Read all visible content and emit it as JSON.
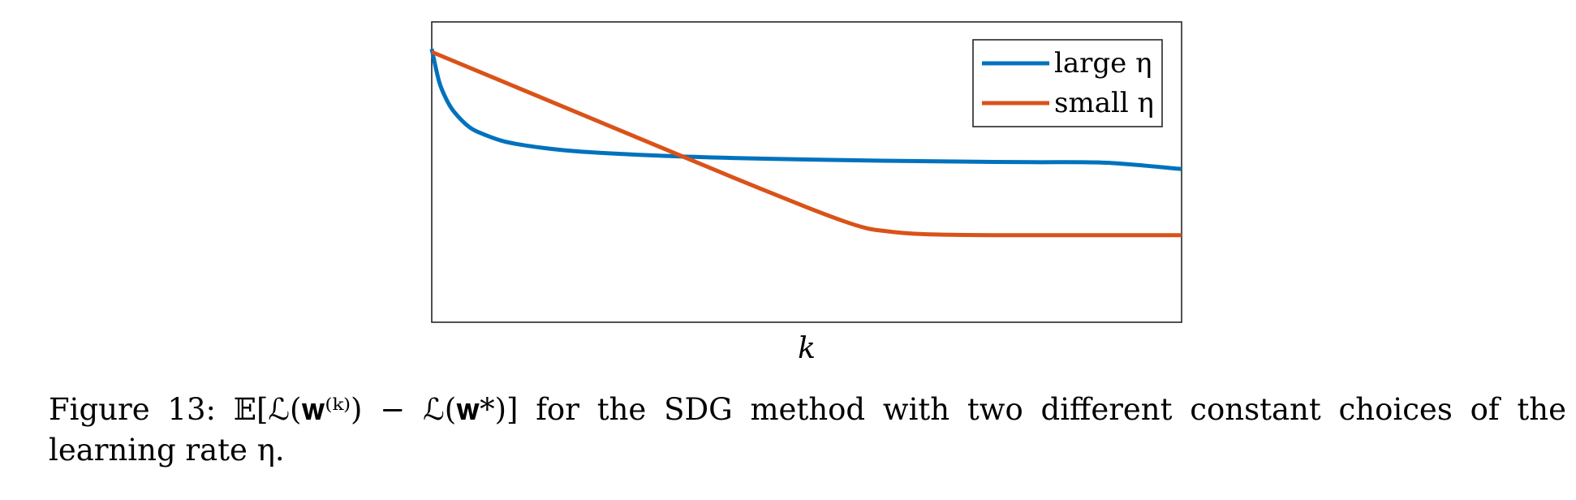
{
  "caption": {
    "label": "Figure 13:",
    "text": "𝔼[ℒ(𝐰⁽ᵏ⁾) − ℒ(𝐰*)] for the SDG method with two different constant choices of the learning rate η."
  },
  "chart_data": {
    "type": "line",
    "title": "",
    "xlabel": "k",
    "ylabel": "",
    "xlim": [
      0,
      100
    ],
    "ylim": [
      0,
      100
    ],
    "grid": false,
    "legend_position": "top-right",
    "series": [
      {
        "name": "large η",
        "color": "#0072BD",
        "x": [
          0,
          1,
          2,
          3,
          5,
          7,
          10,
          15,
          20,
          30,
          40,
          50,
          60,
          70,
          80,
          90,
          100
        ],
        "y": [
          91,
          80,
          74,
          70,
          65,
          62.5,
          60,
          58,
          56.8,
          55.5,
          54.7,
          54.2,
          53.8,
          53.5,
          53.3,
          53.1,
          51
        ]
      },
      {
        "name": "small η",
        "color": "#D95319",
        "x": [
          0,
          10,
          20,
          30,
          40,
          50,
          55,
          58,
          60,
          63,
          66,
          70,
          75,
          80,
          90,
          100
        ],
        "y": [
          90,
          79.6,
          69.2,
          58.8,
          48.4,
          38.3,
          33.6,
          31.3,
          30.5,
          29.7,
          29.3,
          29.1,
          29,
          29,
          29,
          29
        ]
      }
    ]
  }
}
